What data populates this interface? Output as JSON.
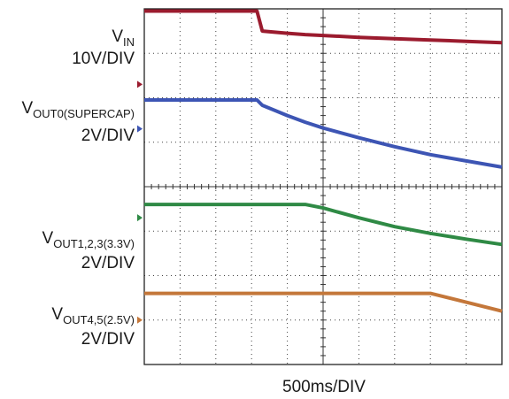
{
  "chart_data": {
    "type": "line",
    "x_axis_label": "500ms/DIV",
    "x_divisions": 10,
    "y_divisions": 8,
    "grid": true,
    "x": [
      0,
      1,
      2,
      3,
      3.15,
      3.3,
      4,
      4.5,
      5,
      6,
      7,
      8,
      9,
      10
    ],
    "series": [
      {
        "key": "vin",
        "label": {
          "main": "V",
          "sub": "IN"
        },
        "scale": "10V/DIV",
        "color": "#9b1b2e",
        "marker_div": 6.3,
        "values": [
          7.95,
          7.95,
          7.95,
          7.95,
          7.95,
          7.5,
          7.45,
          7.42,
          7.4,
          7.36,
          7.33,
          7.3,
          7.27,
          7.24
        ]
      },
      {
        "key": "vout0",
        "label": {
          "main": "V",
          "sub": "OUT0(SUPERCAP)"
        },
        "scale": "2V/DIV",
        "color": "#3d55b4",
        "marker_div": 5.3,
        "values": [
          5.95,
          5.95,
          5.95,
          5.95,
          5.95,
          5.83,
          5.6,
          5.45,
          5.32,
          5.1,
          4.9,
          4.72,
          4.58,
          4.44
        ]
      },
      {
        "key": "vout123",
        "label": {
          "main": "V",
          "sub": "OUT1,2,3(3.3V)"
        },
        "scale": "2V/DIV",
        "color": "#2f8a45",
        "marker_div": 3.3,
        "values": [
          3.6,
          3.6,
          3.6,
          3.6,
          3.6,
          3.6,
          3.6,
          3.6,
          3.52,
          3.3,
          3.1,
          2.95,
          2.82,
          2.7
        ]
      },
      {
        "key": "vout45",
        "label": {
          "main": "V",
          "sub": "OUT4,5(2.5V)"
        },
        "scale": "2V/DIV",
        "color": "#c4773a",
        "marker_div": 1.0,
        "values": [
          1.6,
          1.6,
          1.6,
          1.6,
          1.6,
          1.6,
          1.6,
          1.6,
          1.6,
          1.6,
          1.6,
          1.6,
          1.4,
          1.2
        ]
      }
    ]
  }
}
